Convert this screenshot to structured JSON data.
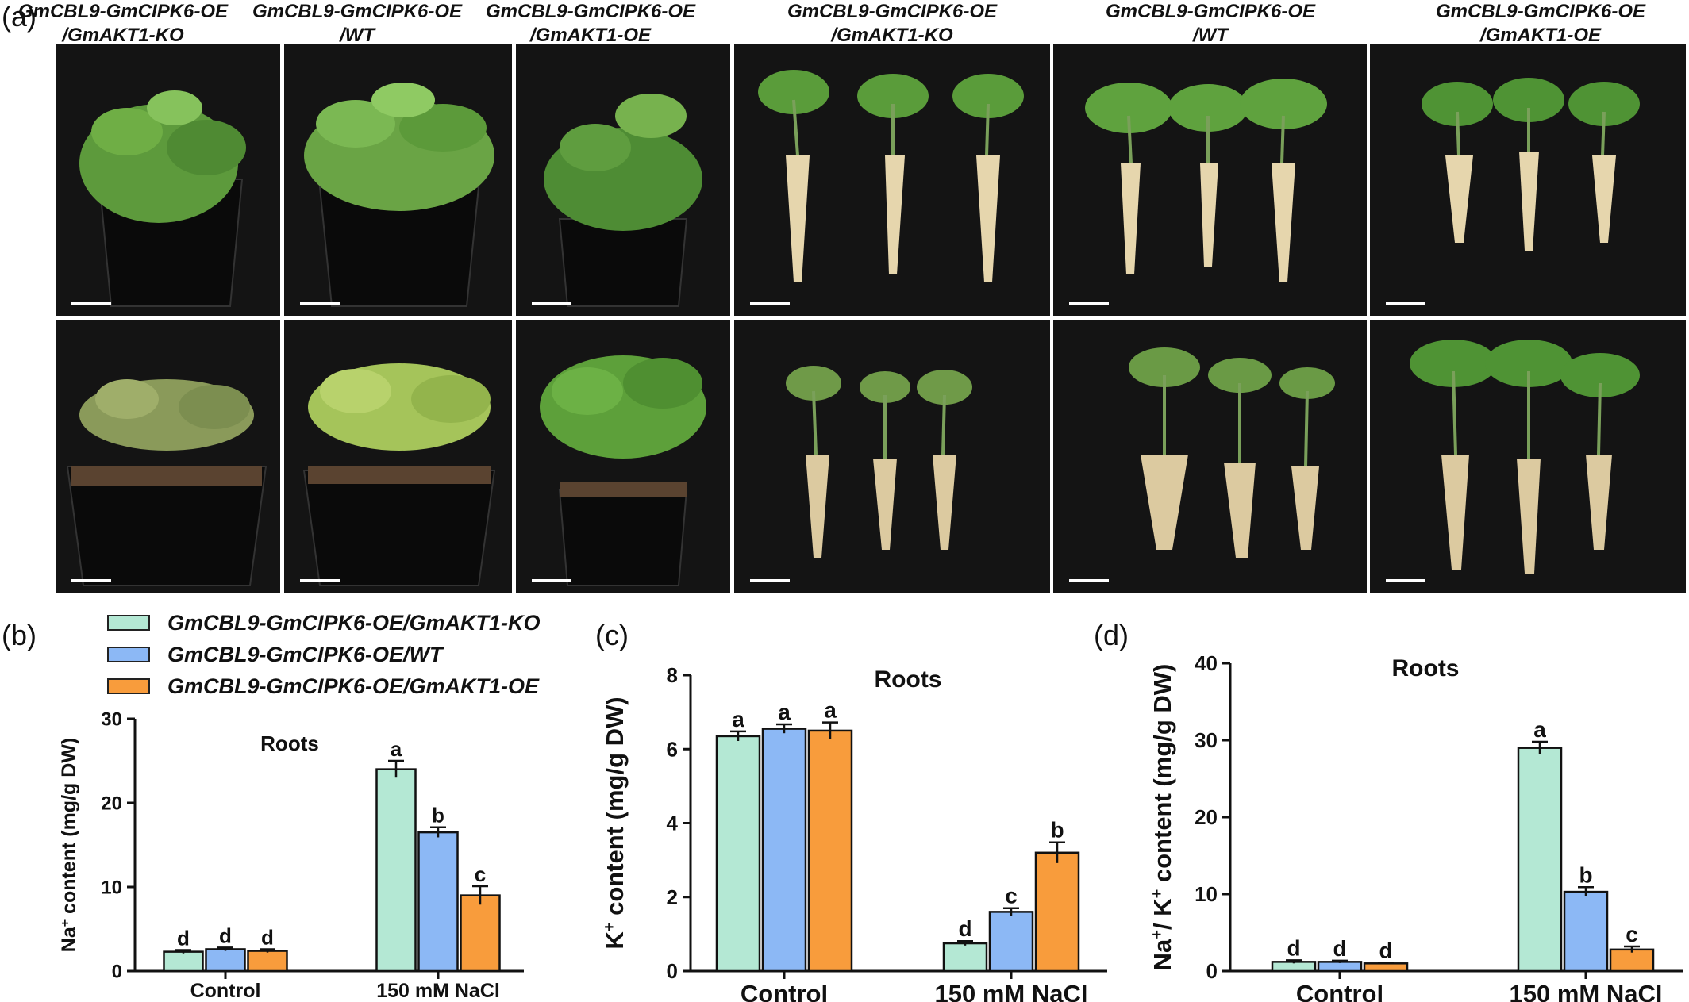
{
  "panel_labels": {
    "a": "(a)",
    "b": "(b)",
    "c": "(c)",
    "d": "(d)"
  },
  "photo_panel": {
    "columns": [
      {
        "line1": "GmCBL9-GmCIPK6-OE",
        "line2": "/GmAKT1-KO"
      },
      {
        "line1": "GmCBL9-GmCIPK6-OE",
        "line2": "/WT"
      },
      {
        "line1": "GmCBL9-GmCIPK6-OE",
        "line2": "/GmAKT1-OE"
      },
      {
        "line1": "GmCBL9-GmCIPK6-OE",
        "line2": "/GmAKT1-KO"
      },
      {
        "line1": "GmCBL9-GmCIPK6-OE",
        "line2": "/WT"
      },
      {
        "line1": "GmCBL9-GmCIPK6-OE",
        "line2": "/GmAKT1-OE"
      }
    ],
    "photos": [
      {
        "content": "potted soybean plant, healthy, control"
      },
      {
        "content": "potted soybean plant, healthy, control"
      },
      {
        "content": "potted soybean plant, healthy, control"
      },
      {
        "content": "three uprooted plants with roots, control"
      },
      {
        "content": "three uprooted plants with roots, control"
      },
      {
        "content": "three uprooted plants with roots, control"
      },
      {
        "content": "potted soybean plant, wilted, salt treated"
      },
      {
        "content": "potted soybean plant, partly wilted, salt treated"
      },
      {
        "content": "potted soybean plant, healthy, salt treated"
      },
      {
        "content": "three uprooted plants with roots, salt treated"
      },
      {
        "content": "three uprooted plants with roots, salt treated"
      },
      {
        "content": "three uprooted plants with roots, salt treated"
      }
    ]
  },
  "legend": [
    {
      "label": "GmCBL9-GmCIPK6-OE/GmAKT1-KO",
      "color": "#b4e8d4"
    },
    {
      "label": "GmCBL9-GmCIPK6-OE/WT",
      "color": "#8cb8f5"
    },
    {
      "label": "GmCBL9-GmCIPK6-OE/GmAKT1-OE",
      "color": "#f89c3c"
    }
  ],
  "chart_data": [
    {
      "panel": "(b)",
      "type": "bar",
      "title": "Roots",
      "ylabel_main": "Na",
      "ylabel_sup": "+",
      "ylabel_rest": " content (mg/g DW)",
      "ylim": [
        0,
        30
      ],
      "yticks": [
        0,
        10,
        20,
        30
      ],
      "categories": [
        "Control",
        "150 mM NaCl"
      ],
      "series": [
        {
          "name": "GmCBL9-GmCIPK6-OE/GmAKT1-KO",
          "values": [
            2.3,
            24.0
          ],
          "errors": [
            0.2,
            1.0
          ],
          "letters": [
            "d",
            "a"
          ]
        },
        {
          "name": "GmCBL9-GmCIPK6-OE/WT",
          "values": [
            2.6,
            16.5
          ],
          "errors": [
            0.2,
            0.6
          ],
          "letters": [
            "d",
            "b"
          ]
        },
        {
          "name": "GmCBL9-GmCIPK6-OE/GmAKT1-OE",
          "values": [
            2.4,
            9.0
          ],
          "errors": [
            0.2,
            1.1
          ],
          "letters": [
            "d",
            "c"
          ]
        }
      ]
    },
    {
      "panel": "(c)",
      "type": "bar",
      "title": "Roots",
      "ylabel_main": "K",
      "ylabel_sup": "+",
      "ylabel_rest": " content (mg/g DW)",
      "ylim": [
        0,
        8
      ],
      "yticks": [
        0,
        2,
        4,
        6,
        8
      ],
      "categories": [
        "Control",
        "150 mM NaCl"
      ],
      "series": [
        {
          "name": "GmCBL9-GmCIPK6-OE/GmAKT1-KO",
          "values": [
            6.35,
            0.75
          ],
          "errors": [
            0.13,
            0.06
          ],
          "letters": [
            "a",
            "d"
          ]
        },
        {
          "name": "GmCBL9-GmCIPK6-OE/WT",
          "values": [
            6.55,
            1.6
          ],
          "errors": [
            0.12,
            0.1
          ],
          "letters": [
            "a",
            "c"
          ]
        },
        {
          "name": "GmCBL9-GmCIPK6-OE/GmAKT1-OE",
          "values": [
            6.5,
            3.2
          ],
          "errors": [
            0.22,
            0.28
          ],
          "letters": [
            "a",
            "b"
          ]
        }
      ]
    },
    {
      "panel": "(d)",
      "type": "bar",
      "title": "Roots",
      "ylabel_main": "Na",
      "ylabel_sup": "+",
      "ylabel_rest": "/ K",
      "ylabel_sup2": "+",
      "ylabel_rest2": " content (mg/g DW)",
      "ylim": [
        0,
        40
      ],
      "yticks": [
        0,
        10,
        20,
        30,
        40
      ],
      "categories": [
        "Control",
        "150 mM NaCl"
      ],
      "series": [
        {
          "name": "GmCBL9-GmCIPK6-OE/GmAKT1-KO",
          "values": [
            1.2,
            29.0
          ],
          "errors": [
            0.2,
            0.8
          ],
          "letters": [
            "d",
            "a"
          ]
        },
        {
          "name": "GmCBL9-GmCIPK6-OE/WT",
          "values": [
            1.2,
            10.3
          ],
          "errors": [
            0.15,
            0.6
          ],
          "letters": [
            "d",
            "b"
          ]
        },
        {
          "name": "GmCBL9-GmCIPK6-OE/GmAKT1-OE",
          "values": [
            1.0,
            2.8
          ],
          "errors": [
            0.1,
            0.4
          ],
          "letters": [
            "d",
            "c"
          ]
        }
      ]
    }
  ]
}
